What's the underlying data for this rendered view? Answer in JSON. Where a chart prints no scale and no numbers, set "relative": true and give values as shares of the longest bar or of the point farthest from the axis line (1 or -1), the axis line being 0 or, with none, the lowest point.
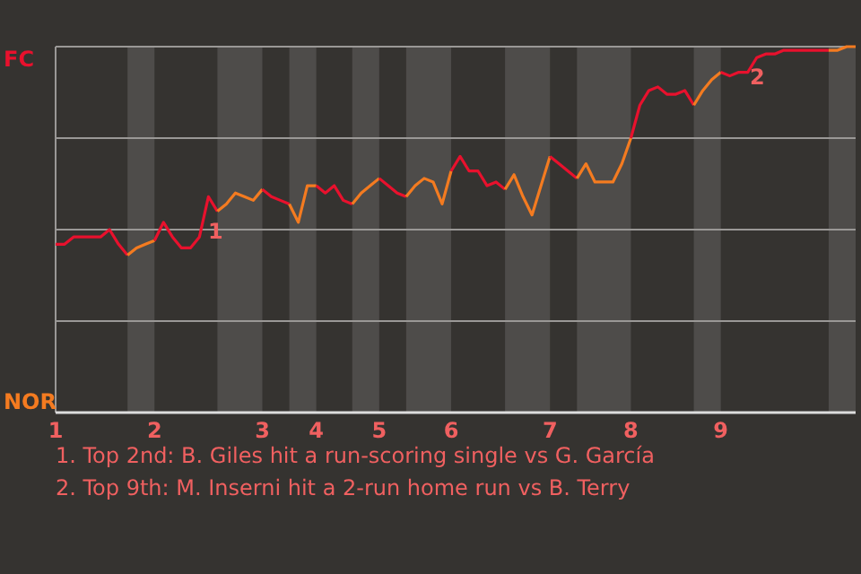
{
  "chart_data": {
    "type": "line",
    "relative": true,
    "grid": true,
    "marker": "none",
    "line_style": "solid",
    "categories": [
      "1",
      null,
      null,
      null,
      null,
      null,
      null,
      null,
      null,
      null,
      null,
      "2",
      null,
      null,
      null,
      null,
      null,
      null,
      null,
      null,
      null,
      null,
      null,
      "3",
      null,
      null,
      null,
      null,
      null,
      "4",
      null,
      null,
      null,
      null,
      null,
      null,
      "5",
      null,
      null,
      null,
      null,
      null,
      null,
      null,
      "6",
      null,
      null,
      null,
      null,
      null,
      null,
      null,
      null,
      null,
      null,
      "7",
      null,
      null,
      null,
      null,
      null,
      null,
      null,
      null,
      "8",
      null,
      null,
      null,
      null,
      null,
      null,
      null,
      null,
      null,
      "9",
      null,
      null,
      null,
      null,
      null,
      null,
      null,
      null,
      null,
      null,
      null,
      null,
      null,
      null,
      null
    ],
    "series": [
      {
        "color": "#e8112d",
        "values": [
          0.46,
          0.46,
          0.48,
          0.48,
          0.48,
          0.48,
          0.5,
          0.46,
          0.43,
          null,
          null,
          null,
          null,
          null,
          null,
          null,
          null,
          null,
          null,
          null,
          null,
          null,
          null,
          null,
          null,
          null,
          null,
          null,
          null,
          null,
          null,
          null,
          null,
          null,
          null,
          null,
          null,
          null,
          null,
          null,
          null,
          null,
          null,
          null,
          null,
          null,
          null,
          null,
          null,
          null,
          null,
          null,
          null,
          null,
          null,
          null,
          null,
          null,
          null,
          null,
          null,
          null,
          null,
          null,
          null,
          null,
          null,
          null,
          null,
          null,
          null,
          null,
          null,
          null,
          null,
          null,
          null,
          null,
          null,
          null,
          null,
          null,
          null,
          null,
          null,
          null,
          null,
          null,
          null,
          null
        ]
      },
      {
        "color": "#f47b20",
        "values": [
          null,
          null,
          null,
          null,
          null,
          null,
          null,
          null,
          0.43,
          0.45,
          0.46,
          0.47,
          null,
          null,
          null,
          null,
          null,
          null,
          null,
          null,
          null,
          null,
          null,
          null,
          null,
          null,
          null,
          null,
          null,
          null,
          null,
          null,
          null,
          null,
          null,
          null,
          null,
          null,
          null,
          null,
          null,
          null,
          null,
          null,
          null,
          null,
          null,
          null,
          null,
          null,
          null,
          null,
          null,
          null,
          null,
          null,
          null,
          null,
          null,
          null,
          null,
          null,
          null,
          null,
          null,
          null,
          null,
          null,
          null,
          null,
          null,
          null,
          null,
          null,
          null,
          null,
          null,
          null,
          null,
          null,
          null,
          null,
          null,
          null,
          null,
          null,
          null,
          null,
          null,
          null
        ]
      },
      {
        "color": "#e8112d",
        "values": [
          null,
          null,
          null,
          null,
          null,
          null,
          null,
          null,
          null,
          null,
          null,
          0.47,
          0.52,
          0.48,
          0.45,
          0.45,
          0.48,
          0.59,
          0.55,
          null,
          null,
          null,
          null,
          null,
          null,
          null,
          null,
          null,
          null,
          null,
          null,
          null,
          null,
          null,
          null,
          null,
          null,
          null,
          null,
          null,
          null,
          null,
          null,
          null,
          null,
          null,
          null,
          null,
          null,
          null,
          null,
          null,
          null,
          null,
          null,
          null,
          null,
          null,
          null,
          null,
          null,
          null,
          null,
          null,
          null,
          null,
          null,
          null,
          null,
          null,
          null,
          null,
          null,
          null,
          null,
          null,
          null,
          null,
          null,
          null,
          null,
          null,
          null,
          null,
          null,
          null,
          null,
          null,
          null,
          null
        ]
      },
      {
        "color": "#f47b20",
        "values": [
          null,
          null,
          null,
          null,
          null,
          null,
          null,
          null,
          null,
          null,
          null,
          null,
          null,
          null,
          null,
          null,
          null,
          null,
          0.55,
          0.57,
          0.6,
          0.59,
          0.58,
          0.61,
          null,
          null,
          null,
          null,
          null,
          null,
          null,
          null,
          null,
          null,
          null,
          null,
          null,
          null,
          null,
          null,
          null,
          null,
          null,
          null,
          null,
          null,
          null,
          null,
          null,
          null,
          null,
          null,
          null,
          null,
          null,
          null,
          null,
          null,
          null,
          null,
          null,
          null,
          null,
          null,
          null,
          null,
          null,
          null,
          null,
          null,
          null,
          null,
          null,
          null,
          null,
          null,
          null,
          null,
          null,
          null,
          null,
          null,
          null,
          null,
          null,
          null,
          null,
          null,
          null,
          null
        ]
      },
      {
        "color": "#e8112d",
        "values": [
          null,
          null,
          null,
          null,
          null,
          null,
          null,
          null,
          null,
          null,
          null,
          null,
          null,
          null,
          null,
          null,
          null,
          null,
          null,
          null,
          null,
          null,
          null,
          0.61,
          0.59,
          0.58,
          0.57,
          null,
          null,
          null,
          null,
          null,
          null,
          null,
          null,
          null,
          null,
          null,
          null,
          null,
          null,
          null,
          null,
          null,
          null,
          null,
          null,
          null,
          null,
          null,
          null,
          null,
          null,
          null,
          null,
          null,
          null,
          null,
          null,
          null,
          null,
          null,
          null,
          null,
          null,
          null,
          null,
          null,
          null,
          null,
          null,
          null,
          null,
          null,
          null,
          null,
          null,
          null,
          null,
          null,
          null,
          null,
          null,
          null,
          null,
          null,
          null,
          null,
          null,
          null
        ]
      },
      {
        "color": "#f47b20",
        "values": [
          null,
          null,
          null,
          null,
          null,
          null,
          null,
          null,
          null,
          null,
          null,
          null,
          null,
          null,
          null,
          null,
          null,
          null,
          null,
          null,
          null,
          null,
          null,
          null,
          null,
          null,
          0.57,
          0.52,
          0.62,
          0.62,
          null,
          null,
          null,
          null,
          null,
          null,
          null,
          null,
          null,
          null,
          null,
          null,
          null,
          null,
          null,
          null,
          null,
          null,
          null,
          null,
          null,
          null,
          null,
          null,
          null,
          null,
          null,
          null,
          null,
          null,
          null,
          null,
          null,
          null,
          null,
          null,
          null,
          null,
          null,
          null,
          null,
          null,
          null,
          null,
          null,
          null,
          null,
          null,
          null,
          null,
          null,
          null,
          null,
          null,
          null,
          null,
          null,
          null,
          null,
          null
        ]
      },
      {
        "color": "#e8112d",
        "values": [
          null,
          null,
          null,
          null,
          null,
          null,
          null,
          null,
          null,
          null,
          null,
          null,
          null,
          null,
          null,
          null,
          null,
          null,
          null,
          null,
          null,
          null,
          null,
          null,
          null,
          null,
          null,
          null,
          null,
          0.62,
          0.6,
          0.62,
          0.58,
          0.57,
          null,
          null,
          null,
          null,
          null,
          null,
          null,
          null,
          null,
          null,
          null,
          null,
          null,
          null,
          null,
          null,
          null,
          null,
          null,
          null,
          null,
          null,
          null,
          null,
          null,
          null,
          null,
          null,
          null,
          null,
          null,
          null,
          null,
          null,
          null,
          null,
          null,
          null,
          null,
          null,
          null,
          null,
          null,
          null,
          null,
          null,
          null,
          null,
          null,
          null,
          null,
          null,
          null,
          null,
          null,
          null
        ]
      },
      {
        "color": "#f47b20",
        "values": [
          null,
          null,
          null,
          null,
          null,
          null,
          null,
          null,
          null,
          null,
          null,
          null,
          null,
          null,
          null,
          null,
          null,
          null,
          null,
          null,
          null,
          null,
          null,
          null,
          null,
          null,
          null,
          null,
          null,
          null,
          null,
          null,
          null,
          0.57,
          0.6,
          0.62,
          0.64,
          null,
          null,
          null,
          null,
          null,
          null,
          null,
          null,
          null,
          null,
          null,
          null,
          null,
          null,
          null,
          null,
          null,
          null,
          null,
          null,
          null,
          null,
          null,
          null,
          null,
          null,
          null,
          null,
          null,
          null,
          null,
          null,
          null,
          null,
          null,
          null,
          null,
          null,
          null,
          null,
          null,
          null,
          null,
          null,
          null,
          null,
          null,
          null,
          null,
          null,
          null,
          null,
          null
        ]
      },
      {
        "color": "#e8112d",
        "values": [
          null,
          null,
          null,
          null,
          null,
          null,
          null,
          null,
          null,
          null,
          null,
          null,
          null,
          null,
          null,
          null,
          null,
          null,
          null,
          null,
          null,
          null,
          null,
          null,
          null,
          null,
          null,
          null,
          null,
          null,
          null,
          null,
          null,
          null,
          null,
          null,
          0.64,
          0.62,
          0.6,
          0.59,
          null,
          null,
          null,
          null,
          null,
          null,
          null,
          null,
          null,
          null,
          null,
          null,
          null,
          null,
          null,
          null,
          null,
          null,
          null,
          null,
          null,
          null,
          null,
          null,
          null,
          null,
          null,
          null,
          null,
          null,
          null,
          null,
          null,
          null,
          null,
          null,
          null,
          null,
          null,
          null,
          null,
          null,
          null,
          null,
          null,
          null,
          null,
          null,
          null,
          null
        ]
      },
      {
        "color": "#f47b20",
        "values": [
          null,
          null,
          null,
          null,
          null,
          null,
          null,
          null,
          null,
          null,
          null,
          null,
          null,
          null,
          null,
          null,
          null,
          null,
          null,
          null,
          null,
          null,
          null,
          null,
          null,
          null,
          null,
          null,
          null,
          null,
          null,
          null,
          null,
          null,
          null,
          null,
          null,
          null,
          null,
          0.59,
          0.62,
          0.64,
          0.63,
          0.57,
          0.66,
          null,
          null,
          null,
          null,
          null,
          null,
          null,
          null,
          null,
          null,
          null,
          null,
          null,
          null,
          null,
          null,
          null,
          null,
          null,
          null,
          null,
          null,
          null,
          null,
          null,
          null,
          null,
          null,
          null,
          null,
          null,
          null,
          null,
          null,
          null,
          null,
          null,
          null,
          null,
          null,
          null,
          null,
          null,
          null,
          null
        ]
      },
      {
        "color": "#e8112d",
        "values": [
          null,
          null,
          null,
          null,
          null,
          null,
          null,
          null,
          null,
          null,
          null,
          null,
          null,
          null,
          null,
          null,
          null,
          null,
          null,
          null,
          null,
          null,
          null,
          null,
          null,
          null,
          null,
          null,
          null,
          null,
          null,
          null,
          null,
          null,
          null,
          null,
          null,
          null,
          null,
          null,
          null,
          null,
          null,
          null,
          0.66,
          0.7,
          0.66,
          0.66,
          0.62,
          0.63,
          0.61,
          null,
          null,
          null,
          null,
          null,
          null,
          null,
          null,
          null,
          null,
          null,
          null,
          null,
          null,
          null,
          null,
          null,
          null,
          null,
          null,
          null,
          null,
          null,
          null,
          null,
          null,
          null,
          null,
          null,
          null,
          null,
          null,
          null,
          null,
          null,
          null,
          null,
          null,
          null
        ]
      },
      {
        "color": "#f47b20",
        "values": [
          null,
          null,
          null,
          null,
          null,
          null,
          null,
          null,
          null,
          null,
          null,
          null,
          null,
          null,
          null,
          null,
          null,
          null,
          null,
          null,
          null,
          null,
          null,
          null,
          null,
          null,
          null,
          null,
          null,
          null,
          null,
          null,
          null,
          null,
          null,
          null,
          null,
          null,
          null,
          null,
          null,
          null,
          null,
          null,
          null,
          null,
          null,
          null,
          null,
          null,
          0.61,
          0.65,
          0.59,
          0.54,
          0.62,
          0.7,
          null,
          null,
          null,
          null,
          null,
          null,
          null,
          null,
          null,
          null,
          null,
          null,
          null,
          null,
          null,
          null,
          null,
          null,
          null,
          null,
          null,
          null,
          null,
          null,
          null,
          null,
          null,
          null,
          null,
          null,
          null,
          null,
          null,
          null
        ]
      },
      {
        "color": "#e8112d",
        "values": [
          null,
          null,
          null,
          null,
          null,
          null,
          null,
          null,
          null,
          null,
          null,
          null,
          null,
          null,
          null,
          null,
          null,
          null,
          null,
          null,
          null,
          null,
          null,
          null,
          null,
          null,
          null,
          null,
          null,
          null,
          null,
          null,
          null,
          null,
          null,
          null,
          null,
          null,
          null,
          null,
          null,
          null,
          null,
          null,
          null,
          null,
          null,
          null,
          null,
          null,
          null,
          null,
          null,
          null,
          null,
          0.7,
          0.68,
          0.66,
          0.64,
          null,
          null,
          null,
          null,
          null,
          null,
          null,
          null,
          null,
          null,
          null,
          null,
          null,
          null,
          null,
          null,
          null,
          null,
          null,
          null,
          null,
          null,
          null,
          null,
          null,
          null,
          null,
          null,
          null,
          null,
          null
        ]
      },
      {
        "color": "#f47b20",
        "values": [
          null,
          null,
          null,
          null,
          null,
          null,
          null,
          null,
          null,
          null,
          null,
          null,
          null,
          null,
          null,
          null,
          null,
          null,
          null,
          null,
          null,
          null,
          null,
          null,
          null,
          null,
          null,
          null,
          null,
          null,
          null,
          null,
          null,
          null,
          null,
          null,
          null,
          null,
          null,
          null,
          null,
          null,
          null,
          null,
          null,
          null,
          null,
          null,
          null,
          null,
          null,
          null,
          null,
          null,
          null,
          null,
          null,
          null,
          0.64,
          0.68,
          0.63,
          0.63,
          0.63,
          0.68,
          0.75,
          null,
          null,
          null,
          null,
          null,
          null,
          null,
          null,
          null,
          null,
          null,
          null,
          null,
          null,
          null,
          null,
          null,
          null,
          null,
          null,
          null,
          null,
          null,
          null,
          null
        ]
      },
      {
        "color": "#e8112d",
        "values": [
          null,
          null,
          null,
          null,
          null,
          null,
          null,
          null,
          null,
          null,
          null,
          null,
          null,
          null,
          null,
          null,
          null,
          null,
          null,
          null,
          null,
          null,
          null,
          null,
          null,
          null,
          null,
          null,
          null,
          null,
          null,
          null,
          null,
          null,
          null,
          null,
          null,
          null,
          null,
          null,
          null,
          null,
          null,
          null,
          null,
          null,
          null,
          null,
          null,
          null,
          null,
          null,
          null,
          null,
          null,
          null,
          null,
          null,
          null,
          null,
          null,
          null,
          null,
          null,
          0.75,
          0.84,
          0.88,
          0.89,
          0.87,
          0.87,
          0.88,
          0.84,
          null,
          null,
          null,
          null,
          null,
          null,
          null,
          null,
          null,
          null,
          null,
          null,
          null,
          null,
          null,
          null,
          null,
          null
        ]
      },
      {
        "color": "#f47b20",
        "values": [
          null,
          null,
          null,
          null,
          null,
          null,
          null,
          null,
          null,
          null,
          null,
          null,
          null,
          null,
          null,
          null,
          null,
          null,
          null,
          null,
          null,
          null,
          null,
          null,
          null,
          null,
          null,
          null,
          null,
          null,
          null,
          null,
          null,
          null,
          null,
          null,
          null,
          null,
          null,
          null,
          null,
          null,
          null,
          null,
          null,
          null,
          null,
          null,
          null,
          null,
          null,
          null,
          null,
          null,
          null,
          null,
          null,
          null,
          null,
          null,
          null,
          null,
          null,
          null,
          null,
          null,
          null,
          null,
          null,
          null,
          null,
          0.84,
          0.88,
          0.91,
          0.93,
          null,
          null,
          null,
          null,
          null,
          null,
          null,
          null,
          null,
          null,
          null,
          null,
          null,
          null,
          null
        ]
      },
      {
        "color": "#e8112d",
        "values": [
          null,
          null,
          null,
          null,
          null,
          null,
          null,
          null,
          null,
          null,
          null,
          null,
          null,
          null,
          null,
          null,
          null,
          null,
          null,
          null,
          null,
          null,
          null,
          null,
          null,
          null,
          null,
          null,
          null,
          null,
          null,
          null,
          null,
          null,
          null,
          null,
          null,
          null,
          null,
          null,
          null,
          null,
          null,
          null,
          null,
          null,
          null,
          null,
          null,
          null,
          null,
          null,
          null,
          null,
          null,
          null,
          null,
          null,
          null,
          null,
          null,
          null,
          null,
          null,
          null,
          null,
          null,
          null,
          null,
          null,
          null,
          null,
          null,
          null,
          0.93,
          0.92,
          0.93,
          0.93,
          0.97,
          0.98,
          0.98,
          0.99,
          0.99,
          0.99,
          0.99,
          0.99,
          0.99,
          null,
          null,
          null
        ]
      },
      {
        "color": "#f47b20",
        "values": [
          null,
          null,
          null,
          null,
          null,
          null,
          null,
          null,
          null,
          null,
          null,
          null,
          null,
          null,
          null,
          null,
          null,
          null,
          null,
          null,
          null,
          null,
          null,
          null,
          null,
          null,
          null,
          null,
          null,
          null,
          null,
          null,
          null,
          null,
          null,
          null,
          null,
          null,
          null,
          null,
          null,
          null,
          null,
          null,
          null,
          null,
          null,
          null,
          null,
          null,
          null,
          null,
          null,
          null,
          null,
          null,
          null,
          null,
          null,
          null,
          null,
          null,
          null,
          null,
          null,
          null,
          null,
          null,
          null,
          null,
          null,
          null,
          null,
          null,
          null,
          null,
          null,
          null,
          null,
          null,
          null,
          null,
          null,
          null,
          null,
          null,
          0.99,
          0.99,
          1,
          1
        ]
      }
    ],
    "annotations": [
      "FC",
      "NOR",
      "1",
      "2",
      "1. Top 2nd: B. Giles hit a run-scoring single vs G. García",
      "2. Top 9th: M. Inserni hit a 2-run home run vs B. Terry"
    ]
  }
}
